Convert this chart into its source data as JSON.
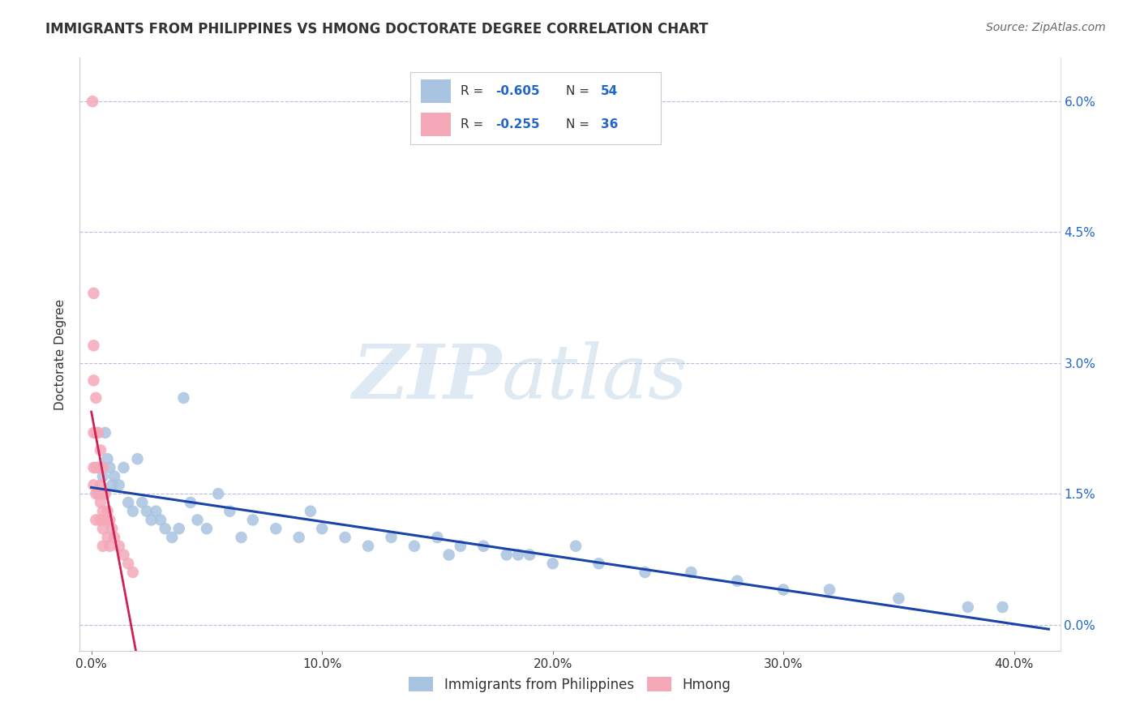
{
  "title": "IMMIGRANTS FROM PHILIPPINES VS HMONG DOCTORATE DEGREE CORRELATION CHART",
  "source": "Source: ZipAtlas.com",
  "ylabel": "Doctorate Degree",
  "xlim": [
    -0.005,
    0.42
  ],
  "ylim": [
    -0.003,
    0.065
  ],
  "xlabel_vals": [
    0.0,
    0.1,
    0.2,
    0.3,
    0.4
  ],
  "xlabel_ticks": [
    "0.0%",
    "10.0%",
    "20.0%",
    "30.0%",
    "40.0%"
  ],
  "ylabel_vals": [
    0.0,
    0.015,
    0.03,
    0.045,
    0.06
  ],
  "ylabel_ticks": [
    "0.0%",
    "1.5%",
    "3.0%",
    "4.5%",
    "6.0%"
  ],
  "r_blue": -0.605,
  "n_blue": 54,
  "r_pink": -0.255,
  "n_pink": 36,
  "blue_color": "#a8c4e0",
  "pink_color": "#f4a8b8",
  "trend_blue_color": "#1a44aa",
  "trend_pink_color": "#cc2255",
  "trend_pink_dashed_color": "#ddaacc",
  "watermark_zip": "ZIP",
  "watermark_atlas": "atlas",
  "legend_labels": [
    "Immigrants from Philippines",
    "Hmong"
  ],
  "blue_scatter_x": [
    0.004,
    0.005,
    0.006,
    0.007,
    0.008,
    0.009,
    0.01,
    0.012,
    0.014,
    0.016,
    0.018,
    0.02,
    0.022,
    0.024,
    0.026,
    0.028,
    0.03,
    0.032,
    0.035,
    0.038,
    0.04,
    0.043,
    0.046,
    0.05,
    0.055,
    0.06,
    0.065,
    0.07,
    0.08,
    0.09,
    0.095,
    0.1,
    0.11,
    0.12,
    0.13,
    0.14,
    0.15,
    0.155,
    0.16,
    0.17,
    0.18,
    0.185,
    0.19,
    0.2,
    0.21,
    0.22,
    0.24,
    0.26,
    0.28,
    0.3,
    0.32,
    0.35,
    0.38,
    0.395
  ],
  "blue_scatter_y": [
    0.018,
    0.017,
    0.022,
    0.019,
    0.018,
    0.016,
    0.017,
    0.016,
    0.018,
    0.014,
    0.013,
    0.019,
    0.014,
    0.013,
    0.012,
    0.013,
    0.012,
    0.011,
    0.01,
    0.011,
    0.026,
    0.014,
    0.012,
    0.011,
    0.015,
    0.013,
    0.01,
    0.012,
    0.011,
    0.01,
    0.013,
    0.011,
    0.01,
    0.009,
    0.01,
    0.009,
    0.01,
    0.008,
    0.009,
    0.009,
    0.008,
    0.008,
    0.008,
    0.007,
    0.009,
    0.007,
    0.006,
    0.006,
    0.005,
    0.004,
    0.004,
    0.003,
    0.002,
    0.002
  ],
  "pink_scatter_x": [
    0.0005,
    0.001,
    0.001,
    0.001,
    0.001,
    0.001,
    0.001,
    0.002,
    0.002,
    0.002,
    0.002,
    0.002,
    0.003,
    0.003,
    0.003,
    0.004,
    0.004,
    0.004,
    0.004,
    0.005,
    0.005,
    0.005,
    0.005,
    0.005,
    0.006,
    0.006,
    0.007,
    0.007,
    0.008,
    0.008,
    0.009,
    0.01,
    0.012,
    0.014,
    0.016,
    0.018
  ],
  "pink_scatter_y": [
    0.06,
    0.038,
    0.032,
    0.028,
    0.022,
    0.018,
    0.016,
    0.026,
    0.022,
    0.018,
    0.015,
    0.012,
    0.022,
    0.018,
    0.015,
    0.02,
    0.016,
    0.014,
    0.012,
    0.018,
    0.015,
    0.013,
    0.011,
    0.009,
    0.015,
    0.012,
    0.013,
    0.01,
    0.012,
    0.009,
    0.011,
    0.01,
    0.009,
    0.008,
    0.007,
    0.006
  ]
}
